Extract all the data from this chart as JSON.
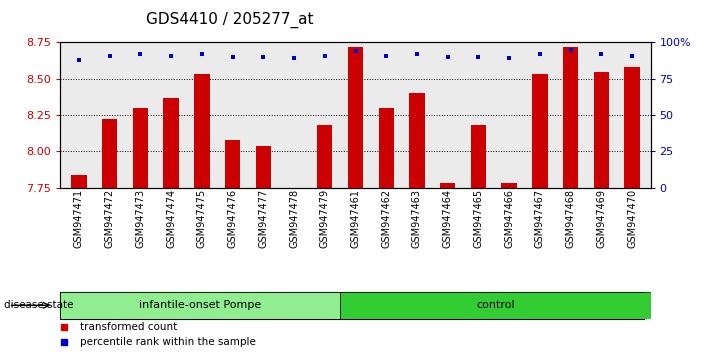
{
  "title": "GDS4410 / 205277_at",
  "samples": [
    "GSM947471",
    "GSM947472",
    "GSM947473",
    "GSM947474",
    "GSM947475",
    "GSM947476",
    "GSM947477",
    "GSM947478",
    "GSM947479",
    "GSM947461",
    "GSM947462",
    "GSM947463",
    "GSM947464",
    "GSM947465",
    "GSM947466",
    "GSM947467",
    "GSM947468",
    "GSM947469",
    "GSM947470"
  ],
  "transformed_counts": [
    7.84,
    8.22,
    8.3,
    8.37,
    8.53,
    8.08,
    8.04,
    7.75,
    8.18,
    8.72,
    8.3,
    8.4,
    7.78,
    8.18,
    7.78,
    8.53,
    8.72,
    8.55,
    8.58
  ],
  "percentile_ranks": [
    88,
    91,
    92,
    91,
    92,
    90,
    90,
    89,
    91,
    94,
    91,
    92,
    90,
    90,
    89,
    92,
    95,
    92,
    91
  ],
  "n_infantile": 9,
  "n_control": 10,
  "bar_color": "#CC0000",
  "dot_color": "#0000CC",
  "ylim_left": [
    7.75,
    8.75
  ],
  "ylim_right": [
    0,
    100
  ],
  "yticks_left": [
    7.75,
    8.0,
    8.25,
    8.5,
    8.75
  ],
  "yticks_right": [
    0,
    25,
    50,
    75,
    100
  ],
  "grid_lines": [
    8.0,
    8.25,
    8.5
  ],
  "legend_items": [
    {
      "label": "transformed count",
      "color": "#CC0000"
    },
    {
      "label": "percentile rank within the sample",
      "color": "#0000CC"
    }
  ],
  "disease_state_label": "disease state",
  "group_label_infantile": "infantile-onset Pompe",
  "group_label_control": "control",
  "infantile_color": "#90EE90",
  "control_color": "#32CD32",
  "background_color": "#FFFFFF",
  "plot_bg_color": "#EBEBEB",
  "title_fontsize": 11,
  "tick_fontsize": 7,
  "label_fontsize": 8,
  "bar_width": 0.5
}
